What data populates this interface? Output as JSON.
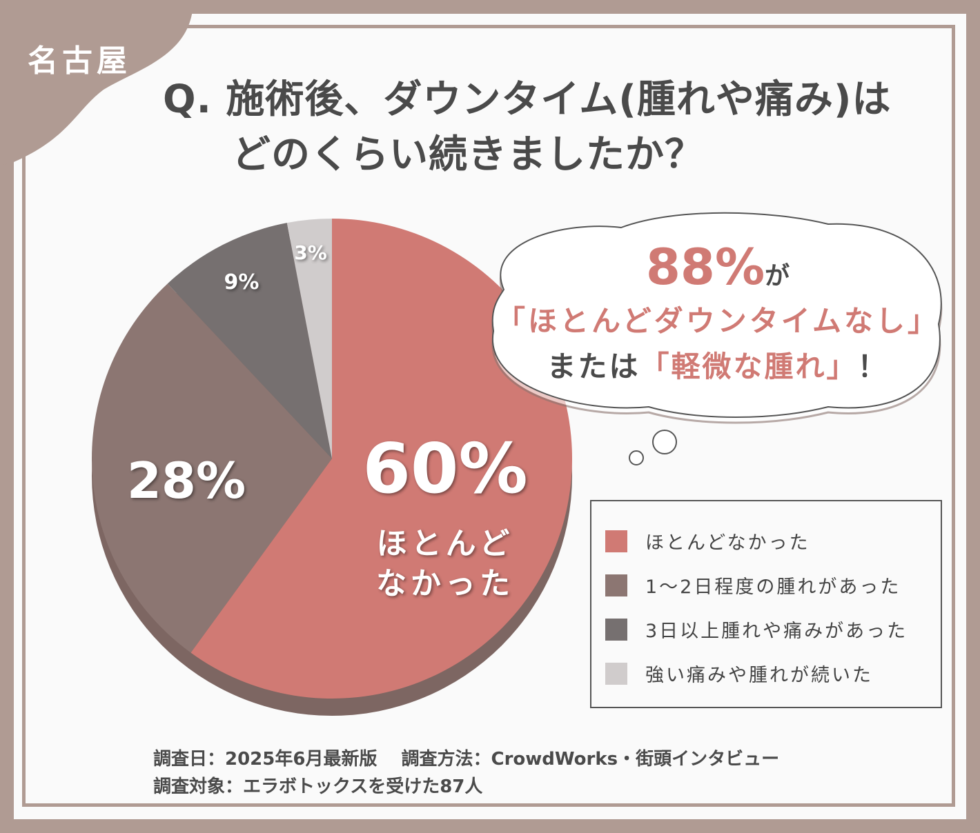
{
  "region": "名古屋",
  "title": {
    "line1": "Q. 施術後、ダウンタイム(腫れや痛み)は",
    "line2": "どのくらい続きましたか？"
  },
  "colors": {
    "frame": "#b09b93",
    "accent": "#d07a74",
    "text": "#4a4a4a"
  },
  "chart_data": {
    "type": "pie",
    "categories": [
      "ほとんどなかった",
      "1〜2日程度の腫れがあった",
      "3日以上腫れや痛みがあった",
      "強い痛みや腫れが続いた"
    ],
    "values": [
      60,
      28,
      9,
      3
    ],
    "colors": [
      "#d07a74",
      "#8c7672",
      "#767070",
      "#d0cccc"
    ],
    "data_labels": [
      "60%",
      "28%",
      "9%",
      "3%"
    ],
    "main_label_sub": [
      "ほとんど",
      "なかった"
    ],
    "start": "top",
    "direction": "clockwise",
    "legend": "right"
  },
  "callout": {
    "pct": "88%",
    "ga": "が",
    "line2": "「ほとんどダウンタイムなし」",
    "line3_pre": "または",
    "line3_hl": "「軽微な腫れ」",
    "line3_post": "！"
  },
  "footer": {
    "line1": "調査日：2025年6月最新版　 調査方法：CrowdWorks・街頭インタビュー",
    "line2": "調査対象：エラボトックスを受けた87人"
  }
}
